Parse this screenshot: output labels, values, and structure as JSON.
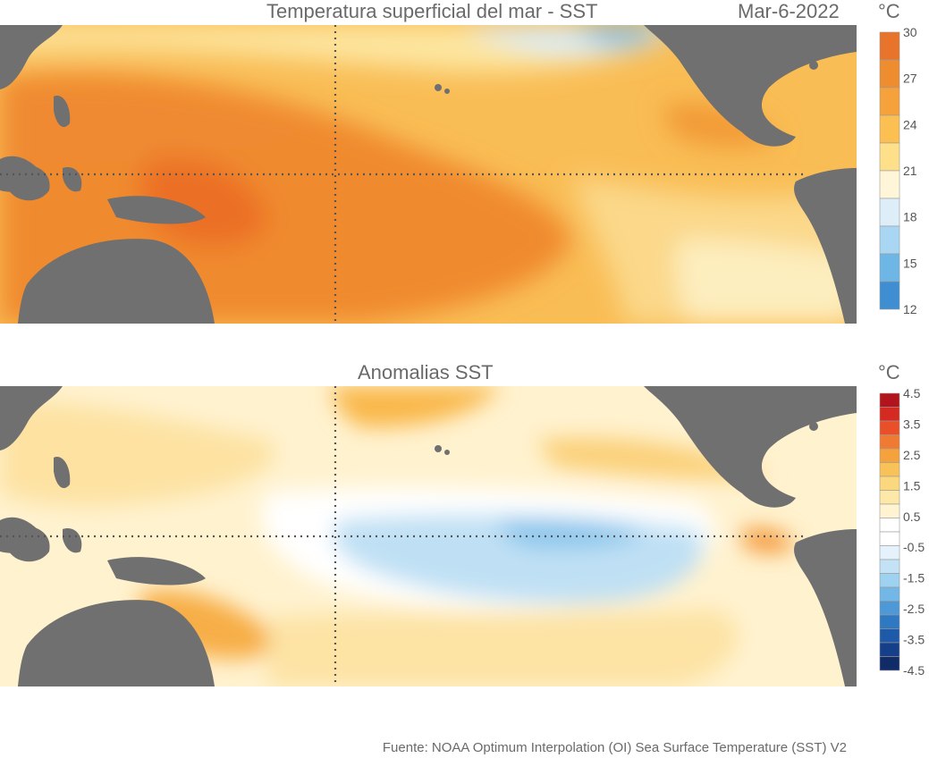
{
  "panels": [
    {
      "title": "Temperatura superficial del mar - SST",
      "date": "Mar-6-2022",
      "unit": "°C",
      "colorbar_ticks": [
        "30",
        "27",
        "24",
        "21",
        "18",
        "15",
        "12"
      ],
      "colorbar_colors": [
        "#e8732a",
        "#ee8c30",
        "#f5a23c",
        "#fbbf52",
        "#fde089",
        "#fff6d9",
        "#ddeef8",
        "#a9d6f2",
        "#6eb6e6",
        "#3f8ed2"
      ]
    },
    {
      "title": "Anomalias SST",
      "unit": "°C",
      "colorbar_ticks": [
        "4.5",
        "3.5",
        "2.5",
        "1.5",
        "0.5",
        "-0.5",
        "-1.5",
        "-2.5",
        "-3.5",
        "-4.5"
      ],
      "colorbar_colors": [
        "#b2141e",
        "#d42a22",
        "#e9502a",
        "#f07a32",
        "#f5a23c",
        "#f9c258",
        "#fbd77d",
        "#fde8a8",
        "#fff3d2",
        "#ffffff",
        "#ffffff",
        "#e6f2fb",
        "#c3e2f6",
        "#9fd1f0",
        "#73b7e6",
        "#4d98d6",
        "#2f78c2",
        "#1f5aa8",
        "#163f8a",
        "#102b68"
      ]
    }
  ],
  "map_colors": {
    "land": "#707070",
    "warm": "#f08a2e",
    "warmer": "#eb6f27",
    "mid": "#f8b54a",
    "pale": "#fde6a0",
    "cool": "#d8ecf8",
    "cold": "#7bbbe8"
  },
  "source": "Fuente: NOAA Optimum Interpolation (OI) Sea Surface Temperature (SST) V2"
}
